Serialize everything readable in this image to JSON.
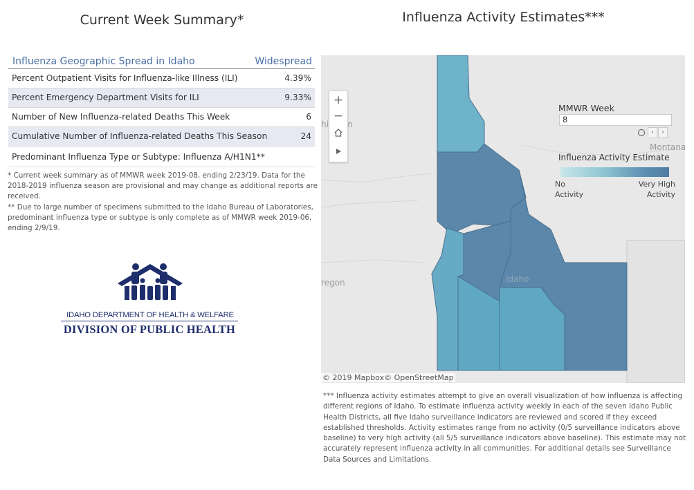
{
  "summary": {
    "title": "Current Week Summary*",
    "header": {
      "label": "Influenza Geographic Spread in Idaho",
      "value": "Widespread"
    },
    "rows": [
      {
        "label": "Percent Outpatient Visits for Influenza-like Illness (ILI)",
        "value": "4.39%"
      },
      {
        "label": "Percent Emergency Department Visits for ILI",
        "value": "9.33%"
      },
      {
        "label": "Number of New Influenza-related Deaths This Week",
        "value": "6"
      },
      {
        "label": "Cumulative Number of Influenza-related Deaths This Season",
        "value": "24"
      }
    ],
    "predominant": "Predominant Influenza Type or Subtype: Influenza A/H1N1**",
    "footnote1": "* Current week summary as of MMWR week 2019-08, ending 2/23/19. Data for the 2018-2019 influenza season are provisional and may change as additional reports are received.",
    "footnote2": "** Due to large number of specimens submitted to the Idaho Bureau of Laboratories, predominant influenza type or subtype is only complete as of MMWR week 2019-06, ending 2/9/19."
  },
  "logo": {
    "agency": "IDAHO DEPARTMENT OF HEALTH & WELFARE",
    "division": "DIVISION OF PUBLIC HEALTH"
  },
  "map": {
    "title": "Influenza Activity Estimates***",
    "zoom_in": "+",
    "zoom_out": "−",
    "home_icon": "home-icon",
    "play_icon": "play-icon",
    "mmwr_label": "MMWR Week",
    "mmwr_value": "8",
    "legend_title": "Influenza Activity Estimate",
    "legend_low": "No\nActivity",
    "legend_high": "Very High\nActivity",
    "place_labels": {
      "washington": "hington",
      "montana": "Montana",
      "oregon": "regon",
      "idaho": "Idaho"
    },
    "attribution": "© 2019 Mapbox© OpenStreetMap",
    "colors": {
      "very_high": "#5b87ab",
      "high": "#5fa8c3",
      "medium": "#6fb3cb",
      "light": "#8cc6d6"
    },
    "note": "*** Influenza activity estimates attempt to give an overall visualization of how influenza is affecting different regions of Idaho. To estimate influenza activity weekly in each of the seven Idaho Public Health Districts, all five Idaho surveillance indicators are reviewed and scored if they exceed established thresholds. Activity estimates range from no activity (0/5 surveillance indicators above baseline) to very high activity (all 5/5 surveillance indicators above baseline). This estimate may not accurately represent influenza activity in all communities. For additional details see Surveillance Data Sources and Limitations."
  }
}
